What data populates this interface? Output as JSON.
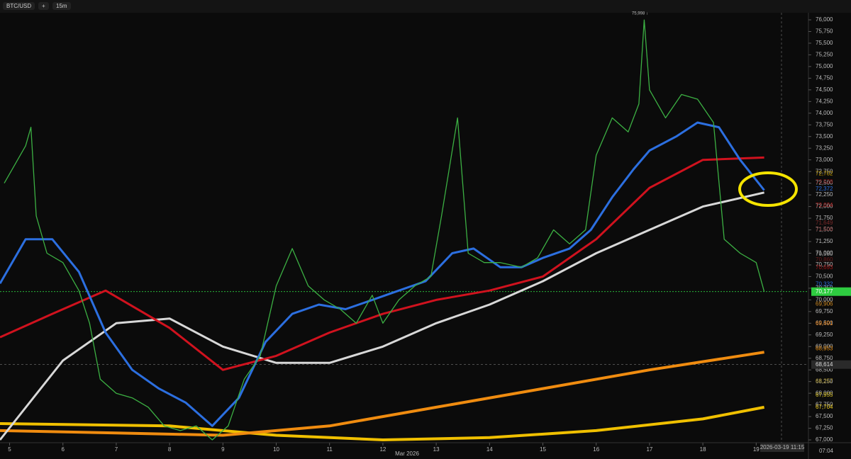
{
  "toolbar": {
    "symbol": "BTC/USD",
    "add": "+",
    "interval": "15m"
  },
  "chart_data": {
    "type": "line",
    "peak_label": "75,998 ↓",
    "month_label": "Mar 2026",
    "time_label": "2026-03-19 11:15",
    "countdown": "07:04",
    "xlim": [
      4.82,
      19.98
    ],
    "xticks": [
      5,
      6,
      7,
      8,
      9,
      10,
      11,
      12,
      13,
      14,
      15,
      16,
      17,
      18,
      19
    ],
    "ylim": [
      66940,
      76152
    ],
    "yticks": [
      {
        "value": 67000,
        "label": "67,000"
      },
      {
        "value": 67250,
        "label": "67,250"
      },
      {
        "value": 67500,
        "label": "67,500"
      },
      {
        "value": 67750,
        "label": "67,750"
      },
      {
        "value": 68000,
        "label": "68,000"
      },
      {
        "value": 68250,
        "label": "68,250"
      },
      {
        "value": 68500,
        "label": "68,500"
      },
      {
        "value": 68750,
        "label": "68,750"
      },
      {
        "value": 69000,
        "label": "69,000"
      },
      {
        "value": 69250,
        "label": "69,250"
      },
      {
        "value": 69500,
        "label": "69,500"
      },
      {
        "value": 69750,
        "label": "69,750"
      },
      {
        "value": 70000,
        "label": "70,000"
      },
      {
        "value": 70250,
        "label": "70,250"
      },
      {
        "value": 70500,
        "label": "70,500"
      },
      {
        "value": 70750,
        "label": "70,750"
      },
      {
        "value": 71000,
        "label": "71,000"
      },
      {
        "value": 71250,
        "label": "71,250"
      },
      {
        "value": 71500,
        "label": "71,500"
      },
      {
        "value": 71750,
        "label": "71,750"
      },
      {
        "value": 72000,
        "label": "72,000"
      },
      {
        "value": 72250,
        "label": "72,250"
      },
      {
        "value": 72500,
        "label": "72,500"
      },
      {
        "value": 72750,
        "label": "72,750"
      },
      {
        "value": 73000,
        "label": "73,000"
      },
      {
        "value": 73250,
        "label": "73,250"
      },
      {
        "value": 73500,
        "label": "73,500"
      },
      {
        "value": 73750,
        "label": "73,750"
      },
      {
        "value": 74000,
        "label": "74,000"
      },
      {
        "value": 74250,
        "label": "74,250"
      },
      {
        "value": 74500,
        "label": "74,500"
      },
      {
        "value": 74750,
        "label": "74,750"
      },
      {
        "value": 75000,
        "label": "75,000"
      },
      {
        "value": 75250,
        "label": "75,250"
      },
      {
        "value": 75500,
        "label": "75,500"
      },
      {
        "value": 75750,
        "label": "75,750"
      },
      {
        "value": 76000,
        "label": "76,000"
      }
    ],
    "current_price": {
      "value": 70177,
      "label": "70,177",
      "color": "#2ecc40"
    },
    "crosshair_price": {
      "value": 68614,
      "label": "68,614"
    },
    "price_labels": [
      {
        "value": 72528,
        "label": "72,528",
        "color": "#8b1010"
      },
      {
        "value": 72024,
        "label": "72,024",
        "color": "#b01818"
      },
      {
        "value": 72702,
        "label": "72,702",
        "color": "#c8a000"
      },
      {
        "value": 72372,
        "label": "72,372",
        "color": "#2c6fe0"
      },
      {
        "value": 71649,
        "label": "71,649",
        "color": "#7a2a2a"
      },
      {
        "value": 71506,
        "label": "71,506",
        "color": "#8a3a3a"
      },
      {
        "value": 70980,
        "label": "70,980",
        "color": "#999999"
      },
      {
        "value": 70860,
        "label": "70,860",
        "color": "#6b1a1a"
      },
      {
        "value": 70693,
        "label": "70,693",
        "color": "#a01515"
      },
      {
        "value": 70332,
        "label": "70,332",
        "color": "#2c6fe0"
      },
      {
        "value": 69906,
        "label": "69,906",
        "color": "#d08a20"
      },
      {
        "value": 69491,
        "label": "69,491",
        "color": "#e07a10"
      },
      {
        "value": 68953,
        "label": "68,953",
        "color": "#e08a10"
      },
      {
        "value": 68257,
        "label": "68,257",
        "color": "#a08a20"
      },
      {
        "value": 67955,
        "label": "67,955",
        "color": "#d8c020"
      },
      {
        "value": 67704,
        "label": "67,704",
        "color": "#f0d020"
      }
    ],
    "series": [
      {
        "color": "#f0c000",
        "width": 4,
        "x": [
          4.82,
          8,
          10,
          12,
          14,
          16,
          18,
          19.15
        ],
        "values": [
          67350,
          67300,
          67100,
          67000,
          67050,
          67200,
          67450,
          67700
        ]
      },
      {
        "color": "#f08c10",
        "width": 4,
        "x": [
          4.82,
          7,
          9,
          11,
          13,
          15,
          17,
          19.15
        ],
        "values": [
          67200,
          67150,
          67100,
          67300,
          67700,
          68100,
          68500,
          68880
        ]
      },
      {
        "color": "#d8d8d8",
        "width": 3,
        "x": [
          4.82,
          6,
          7,
          8,
          9,
          10,
          11,
          12,
          13,
          14,
          15,
          16,
          17,
          18,
          19.15
        ],
        "values": [
          67000,
          68700,
          69500,
          69600,
          69000,
          68650,
          68650,
          69000,
          69500,
          69900,
          70400,
          71000,
          71500,
          72000,
          72300
        ]
      },
      {
        "color": "#d0121e",
        "width": 3,
        "x": [
          4.82,
          5.8,
          6.8,
          8,
          9,
          10,
          11,
          12,
          13,
          14,
          15,
          16,
          17,
          18,
          19.15
        ],
        "values": [
          69200,
          69700,
          70200,
          69400,
          68500,
          68800,
          69300,
          69700,
          70000,
          70200,
          70500,
          71300,
          72400,
          73000,
          73050
        ]
      },
      {
        "color": "#2c6fe0",
        "width": 3,
        "x": [
          4.82,
          5.3,
          5.8,
          6.3,
          6.8,
          7.3,
          7.8,
          8.3,
          8.8,
          9.3,
          9.8,
          10.3,
          10.8,
          11.3,
          11.8,
          12.3,
          12.8,
          13.3,
          13.7,
          14.2,
          14.6,
          15,
          15.5,
          15.9,
          16.3,
          16.7,
          17,
          17.5,
          17.9,
          18.3,
          18.7,
          19.15
        ],
        "values": [
          70350,
          71300,
          71300,
          70600,
          69300,
          68500,
          68100,
          67800,
          67300,
          67900,
          69100,
          69700,
          69900,
          69800,
          70000,
          70200,
          70400,
          71000,
          71100,
          70700,
          70700,
          70900,
          71100,
          71500,
          72200,
          72800,
          73200,
          73500,
          73800,
          73700,
          73000,
          72350
        ]
      },
      {
        "color": "#3cb043",
        "width": 1.3,
        "x": [
          4.9,
          5.3,
          5.4,
          5.5,
          5.7,
          6,
          6.3,
          6.5,
          6.7,
          7,
          7.3,
          7.6,
          7.9,
          8.2,
          8.5,
          8.8,
          9.1,
          9.4,
          9.7,
          10,
          10.3,
          10.6,
          10.9,
          11.2,
          11.5,
          11.8,
          12,
          12.3,
          12.6,
          12.9,
          13.1,
          13.4,
          13.6,
          13.9,
          14.2,
          14.6,
          14.9,
          15.2,
          15.5,
          15.8,
          16,
          16.3,
          16.6,
          16.8,
          16.9,
          17,
          17.3,
          17.6,
          17.9,
          18.2,
          18.4,
          18.7,
          19,
          19.15
        ],
        "values": [
          72500,
          73300,
          73700,
          71800,
          71000,
          70800,
          70200,
          69500,
          68300,
          68000,
          67900,
          67700,
          67300,
          67200,
          67300,
          67000,
          67300,
          68300,
          68800,
          70300,
          71100,
          70300,
          70000,
          69800,
          69500,
          70100,
          69500,
          70000,
          70300,
          70500,
          71800,
          73900,
          71000,
          70800,
          70800,
          70700,
          70900,
          71500,
          71200,
          71500,
          73100,
          73900,
          73600,
          74200,
          75998,
          74500,
          73900,
          74400,
          74300,
          73800,
          71300,
          71000,
          70800,
          70177
        ]
      }
    ]
  }
}
